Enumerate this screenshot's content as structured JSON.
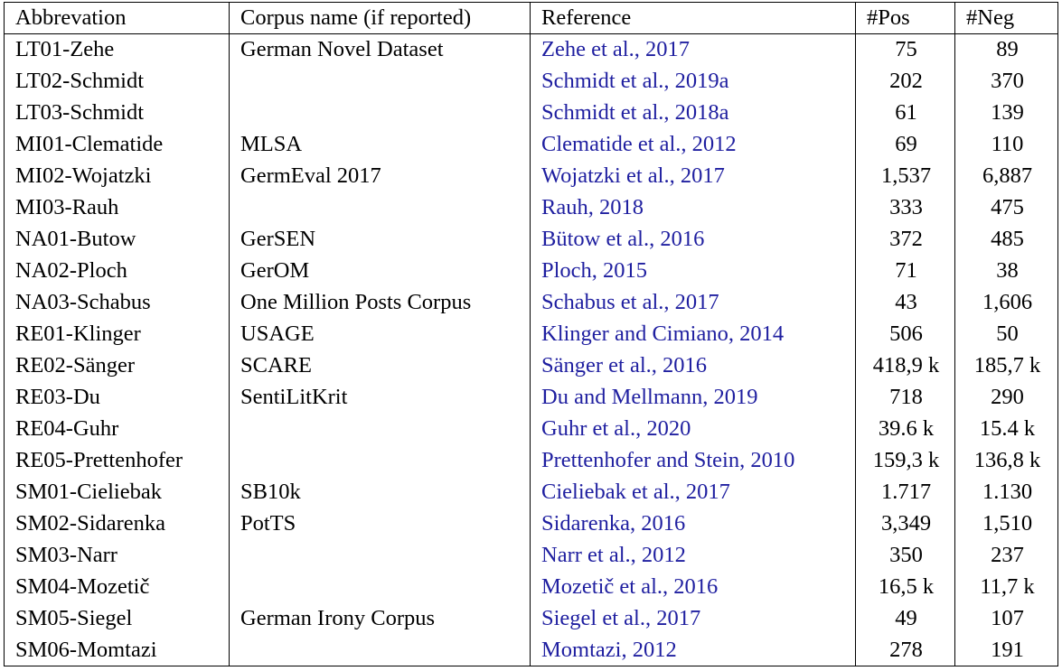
{
  "headers": {
    "abbreviation": "Abbrevation",
    "corpus": "Corpus name (if reported)",
    "reference": "Reference",
    "pos": "#Pos",
    "neg": "#Neg"
  },
  "rows": [
    {
      "abbr": "LT01-Zehe",
      "corpus": "German Novel Dataset",
      "ref": "Zehe et al., 2017",
      "pos": "75",
      "neg": "89"
    },
    {
      "abbr": "LT02-Schmidt",
      "corpus": "",
      "ref": "Schmidt et al., 2019a",
      "pos": "202",
      "neg": "370"
    },
    {
      "abbr": "LT03-Schmidt",
      "corpus": "",
      "ref": "Schmidt et al., 2018a",
      "pos": "61",
      "neg": "139"
    },
    {
      "abbr": "MI01-Clematide",
      "corpus": "MLSA",
      "ref": "Clematide et al., 2012",
      "pos": "69",
      "neg": "110"
    },
    {
      "abbr": "MI02-Wojatzki",
      "corpus": "GermEval 2017",
      "ref": "Wojatzki et al., 2017",
      "pos": "1,537",
      "neg": "6,887"
    },
    {
      "abbr": "MI03-Rauh",
      "corpus": "",
      "ref": "Rauh, 2018",
      "pos": "333",
      "neg": "475"
    },
    {
      "abbr": "NA01-Butow",
      "corpus": "GerSEN",
      "ref": "Bütow et al., 2016",
      "pos": "372",
      "neg": "485"
    },
    {
      "abbr": "NA02-Ploch",
      "corpus": "GerOM",
      "ref": "Ploch, 2015",
      "pos": "71",
      "neg": "38"
    },
    {
      "abbr": "NA03-Schabus",
      "corpus": "One Million Posts Corpus",
      "ref": "Schabus et al., 2017",
      "pos": "43",
      "neg": "1,606"
    },
    {
      "abbr": "RE01-Klinger",
      "corpus": "USAGE",
      "ref": "Klinger and Cimiano, 2014",
      "pos": "506",
      "neg": "50"
    },
    {
      "abbr": "RE02-Sänger",
      "corpus": "SCARE",
      "ref": "Sänger et al., 2016",
      "pos": "418,9 k",
      "neg": "185,7 k"
    },
    {
      "abbr": "RE03-Du",
      "corpus": "SentiLitKrit",
      "ref": "Du and Mellmann, 2019",
      "pos": "718",
      "neg": "290"
    },
    {
      "abbr": "RE04-Guhr",
      "corpus": "",
      "ref": "Guhr et al., 2020",
      "pos": "39.6 k",
      "neg": "15.4 k"
    },
    {
      "abbr": "RE05-Prettenhofer",
      "corpus": "",
      "ref": "Prettenhofer and Stein, 2010",
      "pos": "159,3 k",
      "neg": "136,8 k"
    },
    {
      "abbr": "SM01-Cieliebak",
      "corpus": "SB10k",
      "ref": "Cieliebak et al., 2017",
      "pos": "1.717",
      "neg": "1.130"
    },
    {
      "abbr": "SM02-Sidarenka",
      "corpus": "PotTS",
      "ref": "Sidarenka, 2016",
      "pos": "3,349",
      "neg": "1,510"
    },
    {
      "abbr": "SM03-Narr",
      "corpus": "",
      "ref": "Narr et al., 2012",
      "pos": "350",
      "neg": "237"
    },
    {
      "abbr": "SM04-Mozetič",
      "corpus": "",
      "ref": "Mozetič et al., 2016",
      "pos": "16,5 k",
      "neg": "11,7 k"
    },
    {
      "abbr": "SM05-Siegel",
      "corpus": "German Irony Corpus",
      "ref": "Siegel et al., 2017",
      "pos": "49",
      "neg": "107"
    },
    {
      "abbr": "SM06-Momtazi",
      "corpus": "",
      "ref": "Momtazi, 2012",
      "pos": "278",
      "neg": "191"
    }
  ],
  "colors": {
    "text": "#000000",
    "reference_link": "#1f1fa0",
    "border": "#000000"
  }
}
